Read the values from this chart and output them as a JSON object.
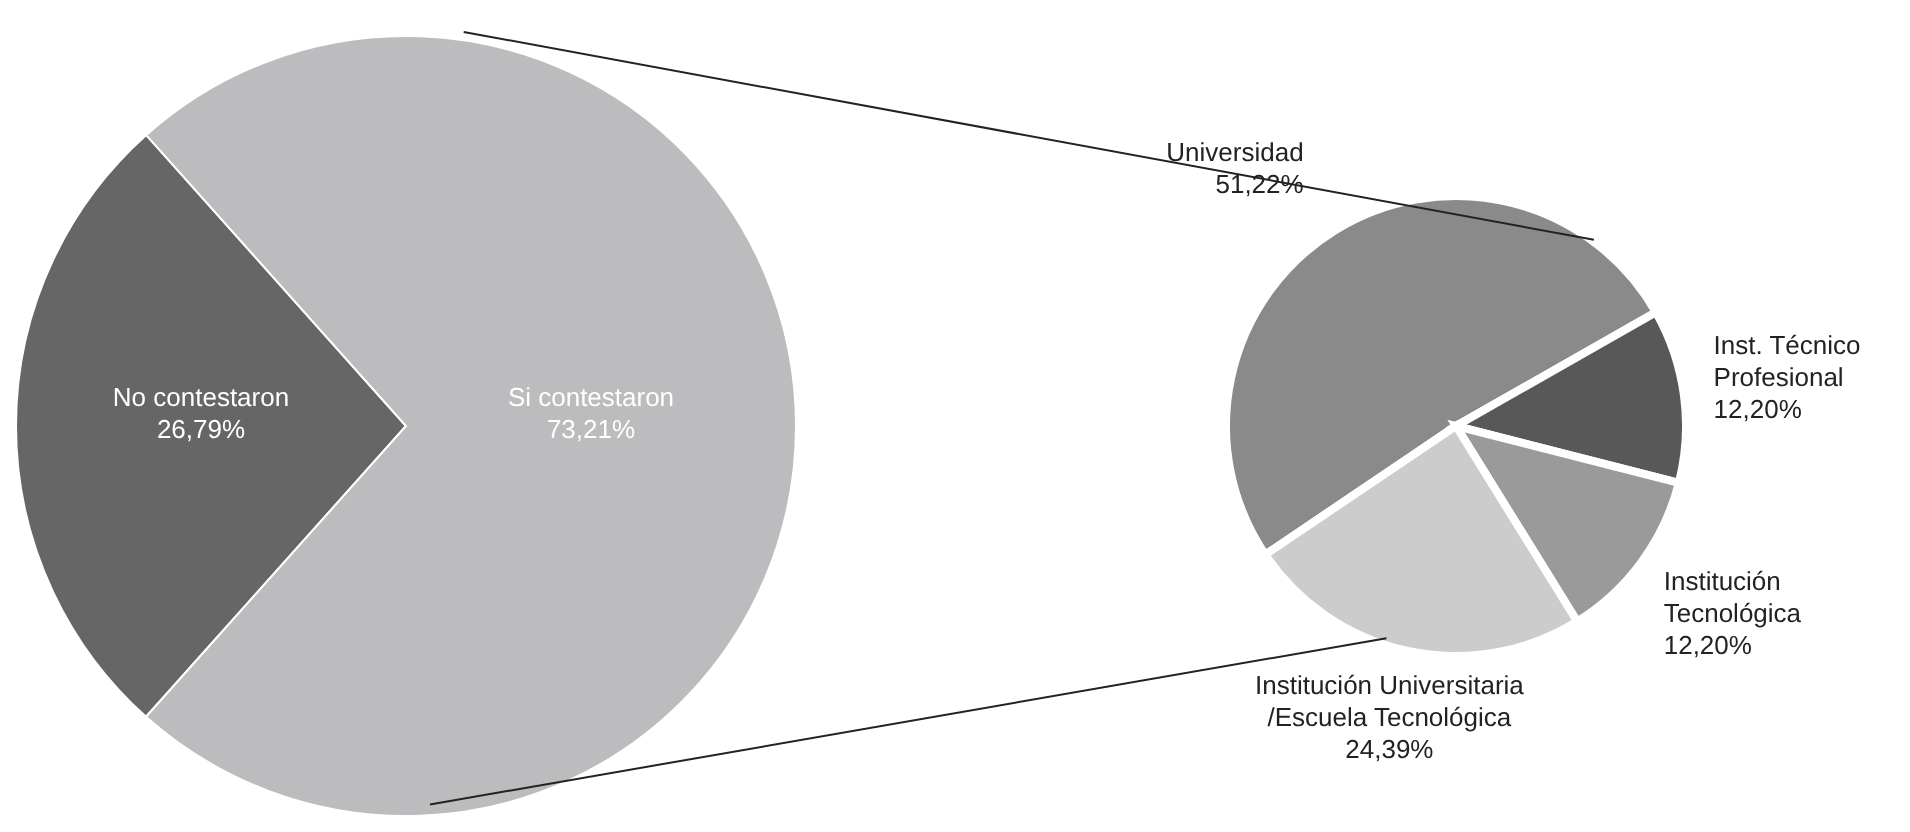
{
  "chart_data": [
    {
      "type": "pie",
      "categories": [
        "No contestaron",
        "Si contestaron"
      ],
      "values": [
        26.79,
        73.21
      ],
      "value_labels": [
        "26,79%",
        "73,21%"
      ],
      "colors": [
        "#666666",
        "#bcbcbe"
      ]
    },
    {
      "type": "pie",
      "categories": [
        "Universidad",
        "Inst. Técnico\nProfesional",
        "Institución\nTecnológica",
        "Institución Universitaria\n/Escuela Tecnológica"
      ],
      "values": [
        51.22,
        12.2,
        12.2,
        24.39
      ],
      "value_labels": [
        "51,22%",
        "12,20%",
        "12,20%",
        "24,39%"
      ],
      "colors": [
        "#8a8a8a",
        "#585858",
        "#9a9a9a",
        "#cccccc"
      ]
    }
  ]
}
